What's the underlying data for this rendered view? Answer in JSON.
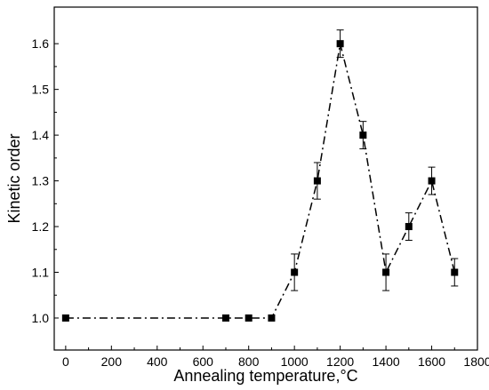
{
  "chart_data": {
    "type": "line",
    "xlabel": "Annealing temperature,°C",
    "ylabel": "Kinetic order",
    "xlim": [
      -50,
      1800
    ],
    "ylim": [
      0.93,
      1.68
    ],
    "xticks": [
      0,
      200,
      400,
      600,
      800,
      1000,
      1200,
      1400,
      1600,
      1800
    ],
    "yticks": [
      1.0,
      1.1,
      1.2,
      1.3,
      1.4,
      1.5,
      1.6
    ],
    "ytick_labels": [
      "1.0",
      "1.1",
      "1.2",
      "1.3",
      "1.4",
      "1.5",
      "1.6"
    ],
    "grid": false,
    "line_style": "dash-dot",
    "marker": "square",
    "series": [
      {
        "x": [
          0,
          700,
          800,
          900,
          1000,
          1100,
          1200,
          1300,
          1400,
          1500,
          1600,
          1700
        ],
        "values": [
          1.0,
          1.0,
          1.0,
          1.0,
          1.1,
          1.3,
          1.6,
          1.4,
          1.1,
          1.2,
          1.3,
          1.1
        ],
        "error": [
          0,
          0,
          0,
          0,
          0.04,
          0.04,
          0.03,
          0.03,
          0.04,
          0.03,
          0.03,
          0.03
        ]
      }
    ]
  }
}
